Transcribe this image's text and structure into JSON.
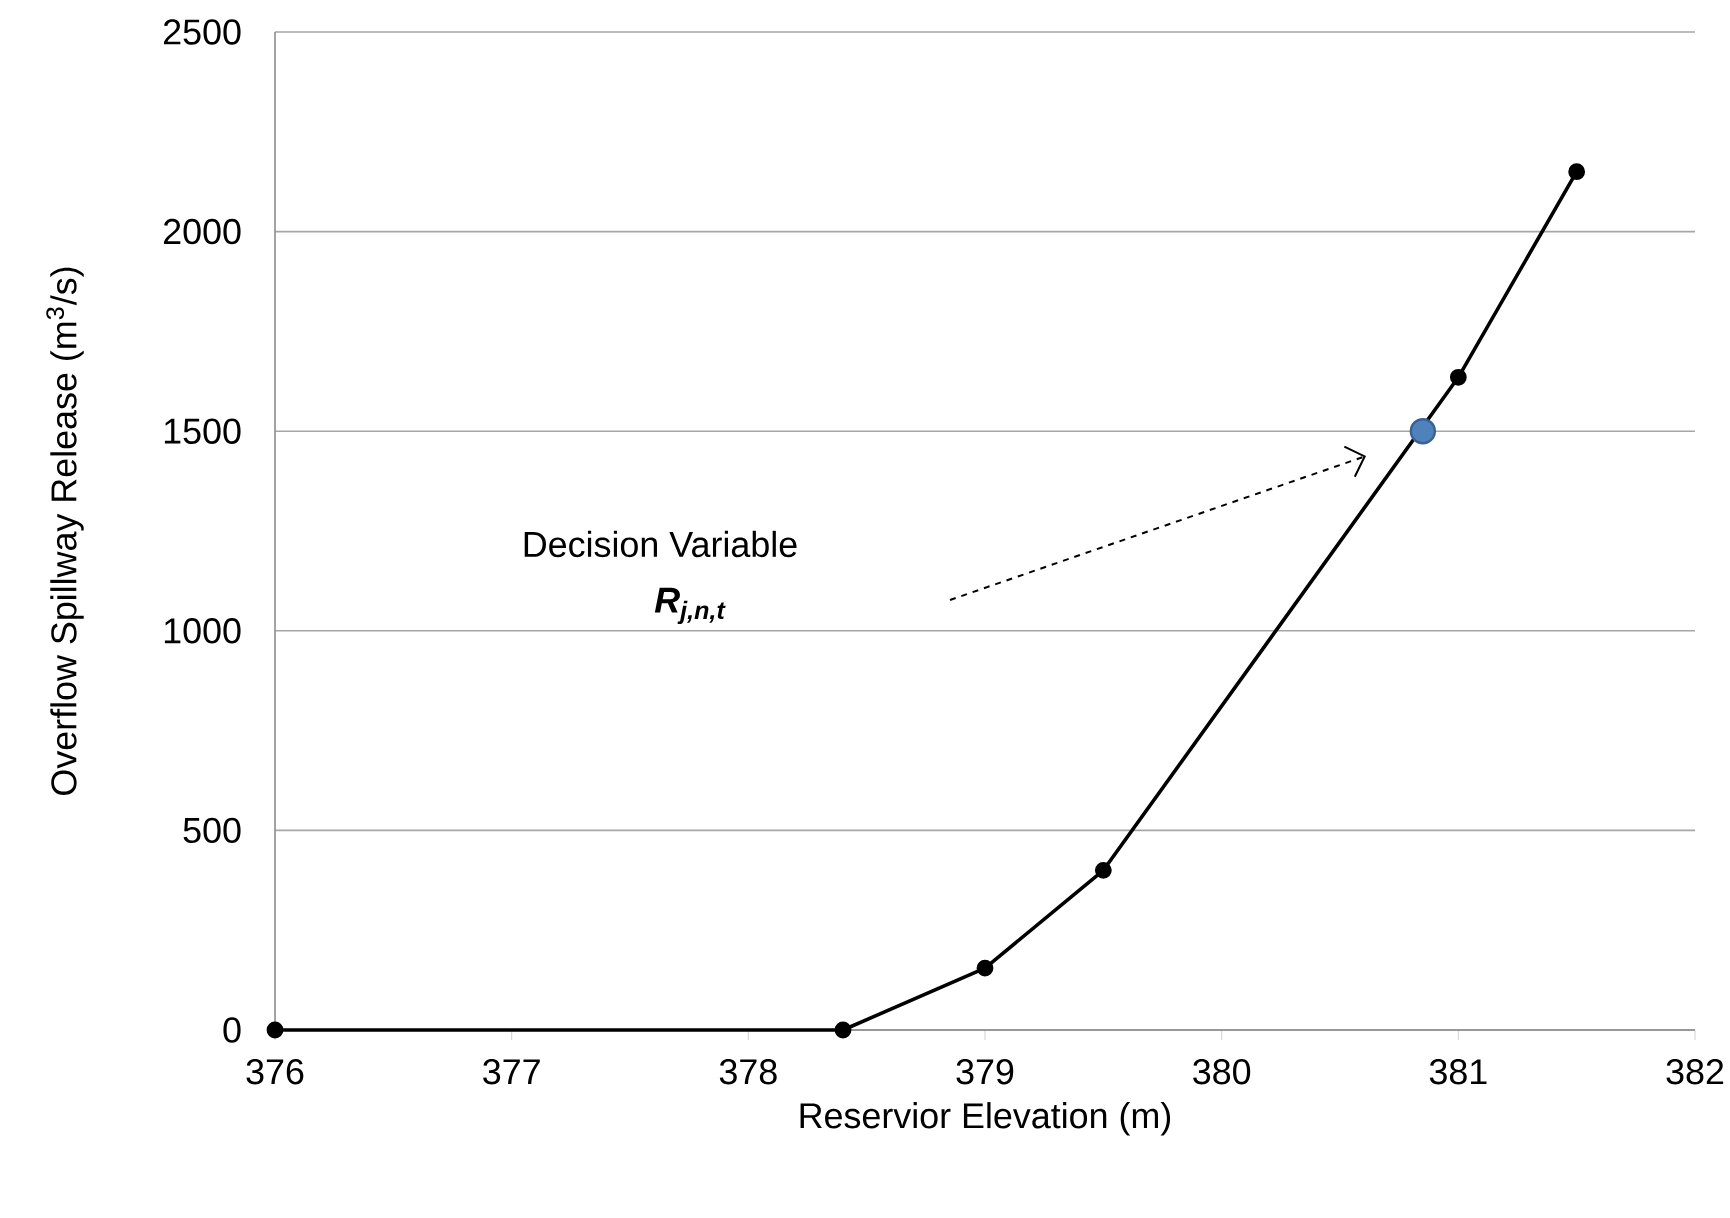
{
  "chart_data": {
    "type": "line",
    "xlabel": "Reservior Elevation (m)",
    "ylabel": "Overflow Spillway Release (m$^{3}$/s)",
    "series": [
      {
        "type": "line",
        "color": "#000000",
        "marker": "circle",
        "x": [
          376,
          378.4,
          379,
          379.5,
          381,
          381.5
        ],
        "values": [
          0,
          0,
          155,
          400,
          1635,
          2150
        ]
      },
      {
        "type": "scatter",
        "color": "#4f81bd",
        "marker": "circle",
        "x": [
          380.85
        ],
        "values": [
          1500
        ]
      }
    ],
    "annotations": [
      "Decision Variable",
      "R$_{j,n,t}$"
    ],
    "xlim": [
      376,
      382
    ],
    "xticks": [
      376,
      377,
      378,
      379,
      380,
      381,
      382
    ],
    "ylim": [
      0,
      2500
    ],
    "yticks": [
      0,
      500,
      1000,
      1500,
      2000,
      2500
    ],
    "grid": "y"
  }
}
